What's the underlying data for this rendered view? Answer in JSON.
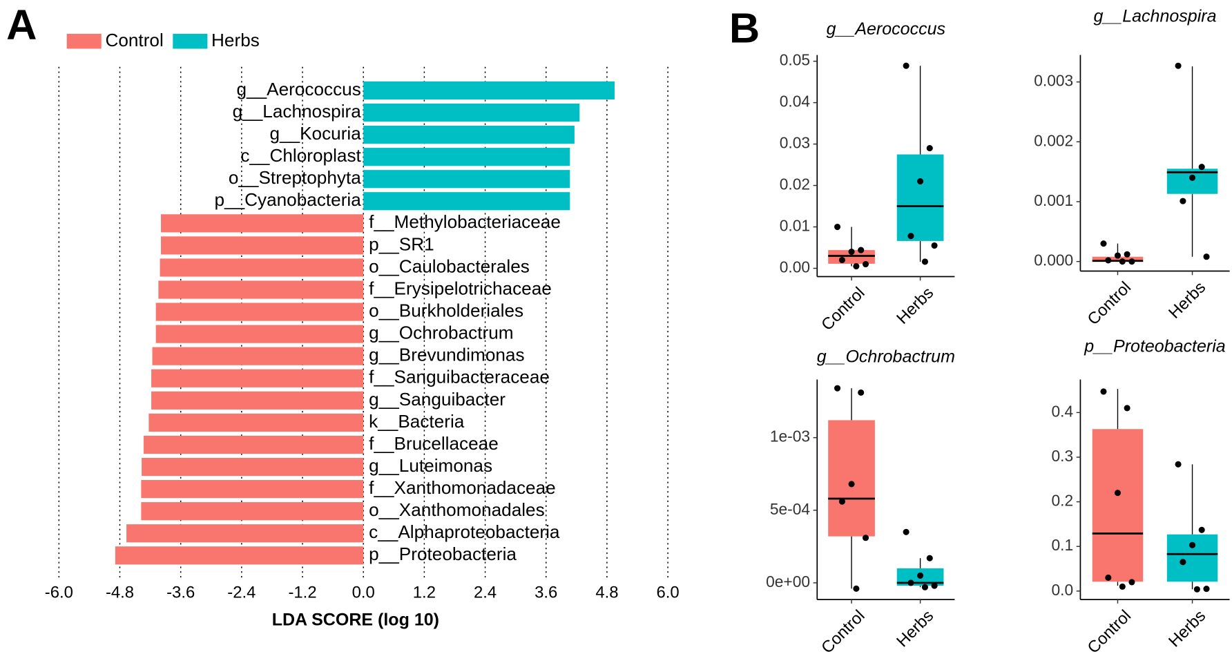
{
  "chart_data": [
    {
      "type": "hbar",
      "panel": "A",
      "categories": [
        "g__Aerococcus",
        "g__Lachnospira",
        "g__Kocuria",
        "c__Chloroplast",
        "o__Streptophyta",
        "p__Cyanobacteria",
        "f__Methylobacteriaceae",
        "p__SR1",
        "o__Caulobacterales",
        "f__Erysipelotrichaceae",
        "o__Burkholderiales",
        "g__Ochrobactrum",
        "g__Brevundimonas",
        "f__Sanguibacteraceae",
        "g__Sanguibacter",
        "k__Bacteria",
        "f__Brucellaceae",
        "g__Luteimonas",
        "f__Xanthomonadaceae",
        "o__Xanthomonadales",
        "c__Alphaproteobacteria",
        "p__Proteobacteria"
      ],
      "series": [
        {
          "name": "Control",
          "color": "#f8766d",
          "values": [
            null,
            null,
            null,
            null,
            null,
            null,
            -3.99,
            -3.99,
            -4.01,
            -4.04,
            -4.09,
            -4.09,
            -4.16,
            -4.18,
            -4.18,
            -4.23,
            -4.33,
            -4.37,
            -4.38,
            -4.38,
            -4.67,
            -4.89
          ]
        },
        {
          "name": "Herbs",
          "color": "#00bfc4",
          "values": [
            4.95,
            4.26,
            4.16,
            4.07,
            4.07,
            4.07,
            null,
            null,
            null,
            null,
            null,
            null,
            null,
            null,
            null,
            null,
            null,
            null,
            null,
            null,
            null,
            null
          ]
        }
      ],
      "xlabel": "LDA SCORE (log 10)",
      "xlim": [
        -6.0,
        6.0
      ],
      "xticks": [
        {
          "value": -6.0,
          "label": "-6.0"
        },
        {
          "value": -4.8,
          "label": "-4.8"
        },
        {
          "value": -3.6,
          "label": "-3.6"
        },
        {
          "value": -2.4,
          "label": "-2.4"
        },
        {
          "value": -1.2,
          "label": "-1.2"
        },
        {
          "value": 0,
          "label": "0.0"
        },
        {
          "value": 1.2,
          "label": "1.2"
        },
        {
          "value": 2.4,
          "label": "2.4"
        },
        {
          "value": 3.6,
          "label": "3.6"
        },
        {
          "value": 4.8,
          "label": "4.8"
        },
        {
          "value": 6.0,
          "label": "6.0"
        }
      ],
      "grid": true
    },
    {
      "type": "box",
      "panel": "B",
      "title": "g__Aerococcus",
      "categories": [
        "Control",
        "Herbs"
      ],
      "colors": [
        "#f8766d",
        "#00bfc4"
      ],
      "boxes": [
        {
          "low": 0.0005,
          "q1": 0.0011,
          "median": 0.003,
          "q3": 0.0044,
          "high": 0.01
        },
        {
          "low": 0.0016,
          "q1": 0.0066,
          "median": 0.015,
          "q3": 0.0275,
          "high": 0.0489
        }
      ],
      "points": [
        [
          0.01,
          0.0044,
          0.004,
          0.002,
          0.001,
          0.0005
        ],
        [
          0.0489,
          0.029,
          0.021,
          0.0078,
          0.0055,
          0.0016
        ]
      ],
      "ylim": [
        -0.002,
        0.0515
      ],
      "yticks": [
        {
          "value": 0,
          "label": "0.00"
        },
        {
          "value": 0.01,
          "label": "0.01"
        },
        {
          "value": 0.02,
          "label": "0.02"
        },
        {
          "value": 0.03,
          "label": "0.03"
        },
        {
          "value": 0.04,
          "label": "0.04"
        },
        {
          "value": 0.05,
          "label": "0.05"
        }
      ]
    },
    {
      "type": "box",
      "title": "g__Lachnospira",
      "categories": [
        "Control",
        "Herbs"
      ],
      "colors": [
        "#f8766d",
        "#00bfc4"
      ],
      "boxes": [
        {
          "low": 0,
          "q1": 0,
          "median": 1e-05,
          "q3": 8e-05,
          "high": 0.0003
        },
        {
          "low": 8e-05,
          "q1": 0.00113,
          "median": 0.00149,
          "q3": 0.00155,
          "high": 0.00326
        }
      ],
      "points": [
        [
          0.0003,
          0.00012,
          0.0001,
          2e-05,
          0,
          0
        ],
        [
          0.00327,
          0.00158,
          0.0014,
          0.00101,
          8e-05
        ]
      ],
      "ylim": [
        -0.00016,
        0.00345
      ],
      "yticks": [
        {
          "value": 0,
          "label": "0.000"
        },
        {
          "value": 0.001,
          "label": "0.001"
        },
        {
          "value": 0.002,
          "label": "0.002"
        },
        {
          "value": 0.003,
          "label": "0.003"
        }
      ]
    },
    {
      "type": "box",
      "title": "g__Ochrobactrum",
      "categories": [
        "Control",
        "Herbs"
      ],
      "colors": [
        "#f8766d",
        "#00bfc4"
      ],
      "boxes": [
        {
          "low": -4e-05,
          "q1": 0.00032,
          "median": 0.00058,
          "q3": 0.00112,
          "high": 0.00134
        },
        {
          "low": -3e-05,
          "q1": -2e-05,
          "median": 0,
          "q3": 0.0001,
          "high": 0.00017
        }
      ],
      "points": [
        [
          0.00134,
          0.00131,
          0.00068,
          0.00056,
          0.00031,
          -4e-05
        ],
        [
          0.00035,
          0.00017,
          5e-05,
          0,
          -2e-05,
          -3e-05
        ]
      ],
      "ylim": [
        -0.000115,
        0.0014
      ],
      "yticks": [
        {
          "value": 0,
          "label": "0e+00"
        },
        {
          "value": 0.0005,
          "label": "5e-04"
        },
        {
          "value": 0.001,
          "label": "1e-03"
        }
      ]
    },
    {
      "type": "box",
      "title": "p__Proteobacteria",
      "categories": [
        "Control",
        "Herbs"
      ],
      "colors": [
        "#f8766d",
        "#00bfc4"
      ],
      "boxes": [
        {
          "low": 0.012,
          "q1": 0.021,
          "median": 0.129,
          "q3": 0.363,
          "high": 0.453
        },
        {
          "low": 0.004,
          "q1": 0.021,
          "median": 0.083,
          "q3": 0.127,
          "high": 0.284
        }
      ],
      "points": [
        [
          0.447,
          0.41,
          0.22,
          0.03,
          0.02,
          0.01
        ],
        [
          0.284,
          0.137,
          0.103,
          0.065,
          0.005,
          0.004
        ]
      ],
      "ylim": [
        -0.019,
        0.474
      ],
      "yticks": [
        {
          "value": 0,
          "label": "0.0"
        },
        {
          "value": 0.1,
          "label": "0.1"
        },
        {
          "value": 0.2,
          "label": "0.2"
        },
        {
          "value": 0.3,
          "label": "0.3"
        },
        {
          "value": 0.4,
          "label": "0.4"
        }
      ]
    }
  ]
}
